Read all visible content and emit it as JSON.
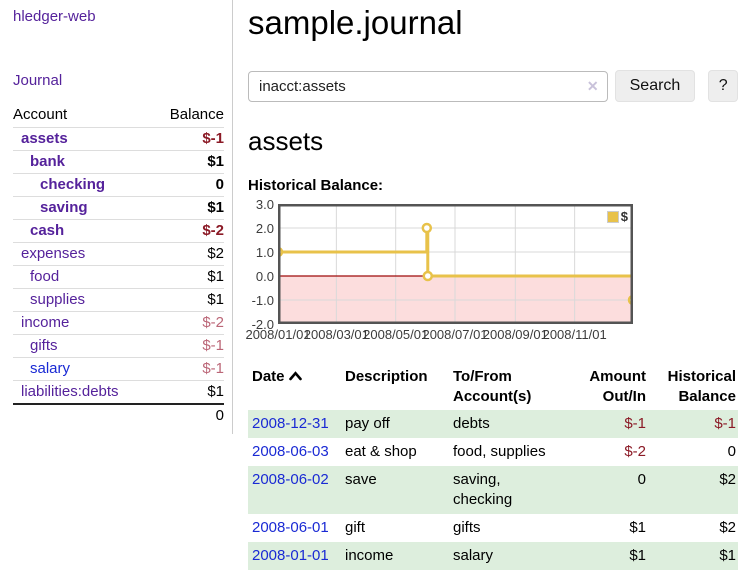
{
  "brand": "hledger-web",
  "sidebar": {
    "journal_link": "Journal",
    "table": {
      "account_header": "Account",
      "balance_header": "Balance",
      "rows": [
        {
          "account": "assets",
          "balance": "$-1",
          "indent": 1,
          "bold": true,
          "balance_class": "neg"
        },
        {
          "account": "bank",
          "balance": "$1",
          "indent": 2,
          "bold": true,
          "balance_class": ""
        },
        {
          "account": "checking",
          "balance": "0",
          "indent": 3,
          "bold": true,
          "balance_class": ""
        },
        {
          "account": "saving",
          "balance": "$1",
          "indent": 3,
          "bold": true,
          "balance_class": ""
        },
        {
          "account": "cash",
          "balance": "$-2",
          "indent": 2,
          "bold": true,
          "balance_class": "neg"
        },
        {
          "account": "expenses",
          "balance": "$2",
          "indent": 1,
          "bold": false,
          "balance_class": ""
        },
        {
          "account": "food",
          "balance": "$1",
          "indent": 2,
          "bold": false,
          "balance_class": ""
        },
        {
          "account": "supplies",
          "balance": "$1",
          "indent": 2,
          "bold": false,
          "balance_class": ""
        },
        {
          "account": "income",
          "balance": "$-2",
          "indent": 1,
          "bold": false,
          "balance_class": "dimneg"
        },
        {
          "account": "gifts",
          "balance": "$-1",
          "indent": 2,
          "bold": false,
          "balance_class": "dimneg"
        },
        {
          "account": "salary",
          "balance": "$-1",
          "indent": 2,
          "bold": false,
          "link_class": "blue",
          "balance_class": "dimneg"
        },
        {
          "account": "liabilities:debts",
          "balance": "$1",
          "indent": 1,
          "bold": false,
          "balance_class": ""
        }
      ],
      "total": "0"
    }
  },
  "header": {
    "title": "sample.journal"
  },
  "search": {
    "query": "inacct:assets",
    "clear_icon": "✕",
    "search_label": "Search",
    "help_label": "?"
  },
  "account_page": {
    "heading": "assets",
    "chart_label": "Historical Balance:"
  },
  "chart_data": {
    "type": "line",
    "step": true,
    "title": "Historical Balance:",
    "series": [
      {
        "name": "$",
        "color": "#e8c24a",
        "points": [
          [
            "2008-01-01",
            1
          ],
          [
            "2008-06-02",
            2
          ],
          [
            "2008-06-03",
            0
          ],
          [
            "2008-12-31",
            -1
          ]
        ]
      }
    ],
    "x_range": [
      "2008-01-01",
      "2008-12-31"
    ],
    "x_ticks": [
      "2008/01/01",
      "2008/03/01",
      "2008/05/01",
      "2008/07/01",
      "2008/09/01",
      "2008/11/01"
    ],
    "y_ticks": [
      "3.0",
      "2.0",
      "1.0",
      "0.0",
      "-1.0",
      "-2.0"
    ],
    "ylim": [
      -2,
      3
    ],
    "grid": true,
    "negative_fill": "#fcdddd",
    "zero_line_color": "#9e0b0b",
    "grid_color": "#d9d9d9",
    "border_color": "#545454",
    "legend": "$",
    "legend_position": "top-right"
  },
  "register": {
    "columns": {
      "date": "Date",
      "description": "Description",
      "accounts": "To/From Account(s)",
      "amount": "Amount Out/In",
      "balance": "Historical Balance"
    },
    "sort_icon": "chevron-up-icon",
    "rows": [
      {
        "date": "2008-12-31",
        "description": "pay off",
        "accounts": "debts",
        "amount": "$-1",
        "amount_class": "neg",
        "balance": "$-1",
        "balance_class": "neg"
      },
      {
        "date": "2008-06-03",
        "description": "eat & shop",
        "accounts": "food, supplies",
        "amount": "$-2",
        "amount_class": "neg",
        "balance": "0",
        "balance_class": ""
      },
      {
        "date": "2008-06-02",
        "description": "save",
        "accounts": "saving, checking",
        "amount": "0",
        "amount_class": "",
        "balance": "$2",
        "balance_class": ""
      },
      {
        "date": "2008-06-01",
        "description": "gift",
        "accounts": "gifts",
        "amount": "$1",
        "amount_class": "",
        "balance": "$2",
        "balance_class": ""
      },
      {
        "date": "2008-01-01",
        "description": "income",
        "accounts": "salary",
        "amount": "$1",
        "amount_class": "",
        "balance": "$1",
        "balance_class": ""
      }
    ]
  }
}
